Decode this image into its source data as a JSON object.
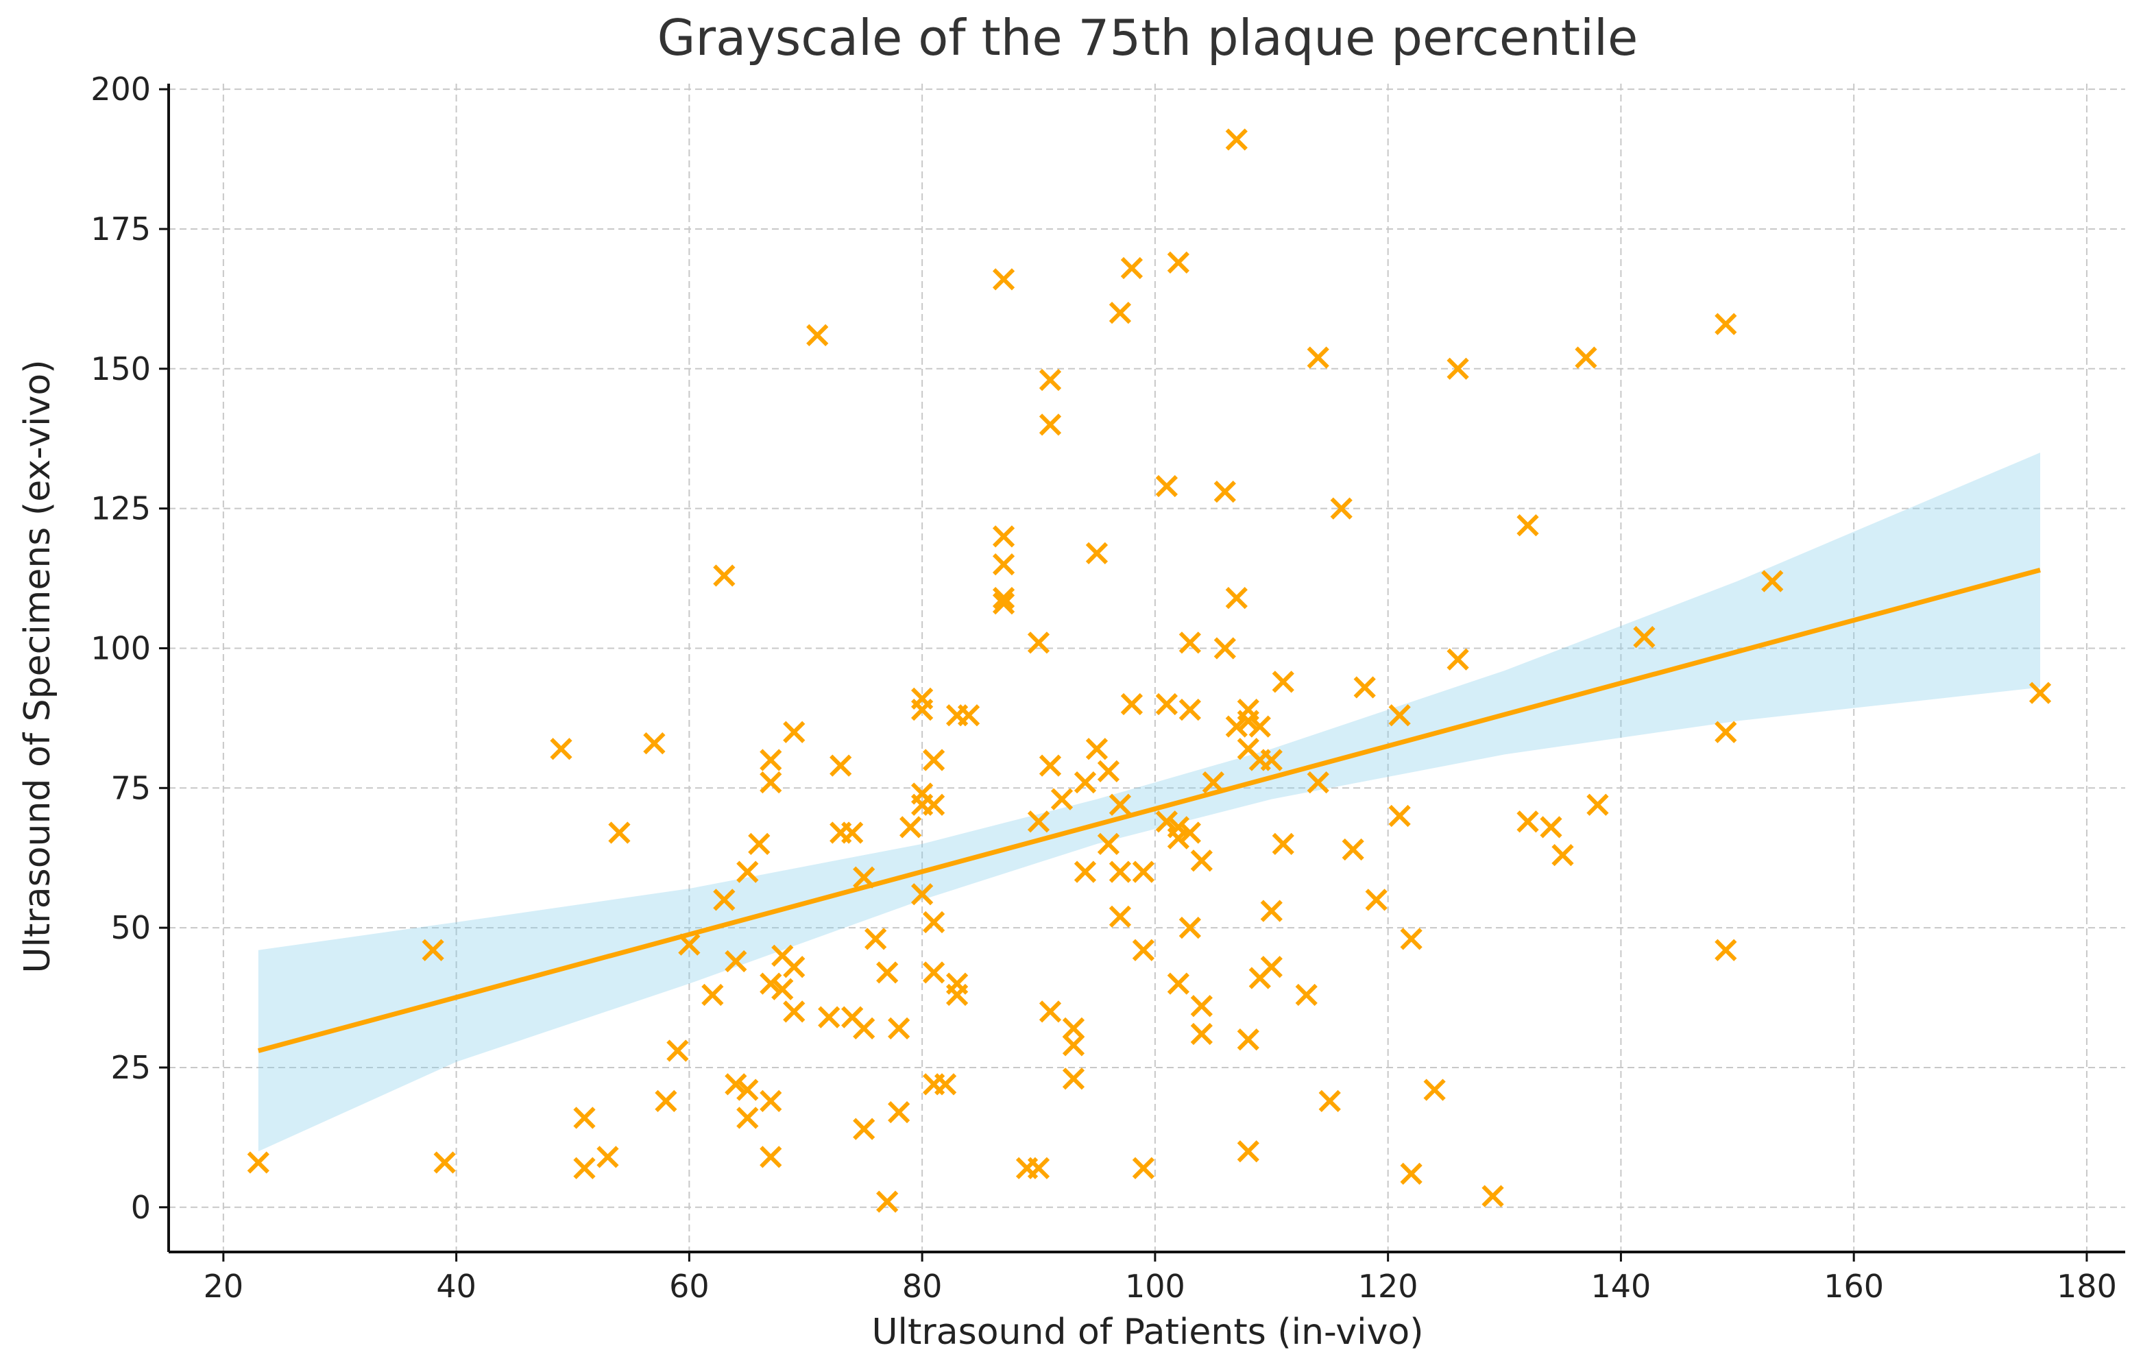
{
  "chart_data": {
    "type": "scatter",
    "title": "Grayscale of the 75th plaque percentile",
    "xlabel": "Ultrasound of Patients (in-vivo)",
    "ylabel": "Ultrasound of Specimens (ex-vivo)",
    "xlim": [
      15.3,
      183.3
    ],
    "ylim": [
      -8,
      201
    ],
    "xticks": [
      20,
      40,
      60,
      80,
      100,
      120,
      140,
      160,
      180
    ],
    "yticks": [
      0,
      25,
      50,
      75,
      100,
      125,
      150,
      175,
      200
    ],
    "grid": true,
    "marker": "x",
    "colors": {
      "points": "#FFA500",
      "line": "#FFA500",
      "band": "#87CEEB"
    },
    "points": [
      [
        23,
        8
      ],
      [
        38,
        46
      ],
      [
        39,
        8
      ],
      [
        49,
        82
      ],
      [
        51,
        16
      ],
      [
        51,
        7
      ],
      [
        53,
        9
      ],
      [
        54,
        67
      ],
      [
        57,
        83
      ],
      [
        58,
        19
      ],
      [
        59,
        28
      ],
      [
        60,
        47
      ],
      [
        62,
        38
      ],
      [
        63,
        113
      ],
      [
        63,
        55
      ],
      [
        64,
        44
      ],
      [
        64,
        22
      ],
      [
        65,
        21
      ],
      [
        65,
        16
      ],
      [
        65,
        60
      ],
      [
        66,
        65
      ],
      [
        67,
        80
      ],
      [
        67,
        76
      ],
      [
        67,
        40
      ],
      [
        67,
        19
      ],
      [
        67,
        9
      ],
      [
        68,
        45
      ],
      [
        68,
        39
      ],
      [
        69,
        43
      ],
      [
        69,
        35
      ],
      [
        69,
        85
      ],
      [
        71,
        156
      ],
      [
        72,
        34
      ],
      [
        73,
        79
      ],
      [
        73,
        67
      ],
      [
        74,
        67
      ],
      [
        74,
        34
      ],
      [
        75,
        59
      ],
      [
        75,
        32
      ],
      [
        75,
        14
      ],
      [
        76,
        48
      ],
      [
        77,
        42
      ],
      [
        77,
        1
      ],
      [
        78,
        32
      ],
      [
        78,
        17
      ],
      [
        79,
        68
      ],
      [
        80,
        91
      ],
      [
        80,
        89
      ],
      [
        80,
        74
      ],
      [
        80,
        72
      ],
      [
        80,
        56
      ],
      [
        81,
        80
      ],
      [
        81,
        72
      ],
      [
        81,
        51
      ],
      [
        81,
        42
      ],
      [
        81,
        22
      ],
      [
        82,
        22
      ],
      [
        83,
        88
      ],
      [
        83,
        40
      ],
      [
        83,
        38
      ],
      [
        84,
        88
      ],
      [
        87,
        166
      ],
      [
        87,
        120
      ],
      [
        87,
        115
      ],
      [
        87,
        109
      ],
      [
        87,
        108
      ],
      [
        89,
        7
      ],
      [
        90,
        7
      ],
      [
        90,
        101
      ],
      [
        90,
        69
      ],
      [
        91,
        148
      ],
      [
        91,
        140
      ],
      [
        91,
        79
      ],
      [
        91,
        35
      ],
      [
        92,
        73
      ],
      [
        93,
        32
      ],
      [
        93,
        29
      ],
      [
        93,
        23
      ],
      [
        94,
        76
      ],
      [
        94,
        60
      ],
      [
        95,
        117
      ],
      [
        95,
        82
      ],
      [
        96,
        78
      ],
      [
        96,
        65
      ],
      [
        97,
        160
      ],
      [
        97,
        72
      ],
      [
        97,
        60
      ],
      [
        97,
        52
      ],
      [
        98,
        168
      ],
      [
        98,
        90
      ],
      [
        99,
        60
      ],
      [
        99,
        46
      ],
      [
        99,
        7
      ],
      [
        101,
        129
      ],
      [
        101,
        90
      ],
      [
        101,
        69
      ],
      [
        102,
        169
      ],
      [
        102,
        68
      ],
      [
        102,
        66
      ],
      [
        102,
        40
      ],
      [
        103,
        101
      ],
      [
        103,
        89
      ],
      [
        103,
        67
      ],
      [
        103,
        50
      ],
      [
        104,
        62
      ],
      [
        104,
        36
      ],
      [
        104,
        31
      ],
      [
        105,
        76
      ],
      [
        106,
        128
      ],
      [
        106,
        100
      ],
      [
        107,
        191
      ],
      [
        107,
        109
      ],
      [
        107,
        86
      ],
      [
        108,
        89
      ],
      [
        108,
        87
      ],
      [
        108,
        82
      ],
      [
        108,
        30
      ],
      [
        108,
        10
      ],
      [
        109,
        86
      ],
      [
        109,
        80
      ],
      [
        109,
        41
      ],
      [
        110,
        80
      ],
      [
        110,
        53
      ],
      [
        110,
        43
      ],
      [
        111,
        94
      ],
      [
        111,
        65
      ],
      [
        113,
        38
      ],
      [
        114,
        152
      ],
      [
        114,
        76
      ],
      [
        115,
        19
      ],
      [
        116,
        125
      ],
      [
        117,
        64
      ],
      [
        118,
        93
      ],
      [
        119,
        55
      ],
      [
        121,
        88
      ],
      [
        121,
        70
      ],
      [
        122,
        48
      ],
      [
        122,
        6
      ],
      [
        124,
        21
      ],
      [
        126,
        150
      ],
      [
        126,
        98
      ],
      [
        129,
        2
      ],
      [
        132,
        122
      ],
      [
        132,
        69
      ],
      [
        134,
        68
      ],
      [
        135,
        63
      ],
      [
        137,
        152
      ],
      [
        138,
        72
      ],
      [
        142,
        102
      ],
      [
        149,
        158
      ],
      [
        149,
        85
      ],
      [
        149,
        46
      ],
      [
        153,
        112
      ],
      [
        176,
        92
      ]
    ],
    "regression": {
      "x": [
        23,
        176
      ],
      "y": [
        28,
        114
      ]
    },
    "confidence_band": {
      "x": [
        23,
        40,
        60,
        80,
        95,
        110,
        130,
        150,
        176
      ],
      "lower": [
        10,
        26,
        40,
        55,
        65,
        73,
        81,
        87,
        93
      ],
      "upper": [
        46,
        51,
        57,
        65,
        73,
        82,
        96,
        112,
        135
      ]
    }
  }
}
